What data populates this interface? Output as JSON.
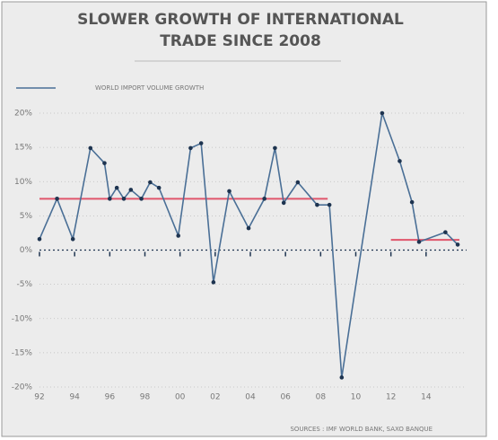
{
  "chart_data": {
    "type": "line",
    "title": [
      "SLOWER GROWTH OF INTERNATIONAL",
      "TRADE SINCE 2008"
    ],
    "source": "SOURCES : IMF WORLD BANK, SAXO BANQUE",
    "x": [
      1992.0,
      1993.0,
      1993.9,
      1994.9,
      1995.7,
      1996.0,
      1996.4,
      1996.8,
      1997.2,
      1997.8,
      1998.3,
      1998.8,
      1999.9,
      2000.6,
      2001.2,
      2001.9,
      2002.8,
      2003.9,
      2004.8,
      2005.4,
      2005.9,
      2006.7,
      2007.8,
      2008.5,
      2009.2,
      2011.5,
      2012.5,
      2013.2,
      2013.6,
      2015.1,
      2015.8
    ],
    "series": [
      {
        "name": "WORLD IMPORT VOLUME GROWTH",
        "color": "#4a6f96",
        "marker_color": "#1e3450",
        "values": [
          1.6,
          7.5,
          1.6,
          14.9,
          12.7,
          7.5,
          9.1,
          7.5,
          8.8,
          7.5,
          9.9,
          9.1,
          2.1,
          14.9,
          15.6,
          -4.7,
          8.6,
          3.2,
          7.5,
          14.9,
          6.9,
          9.9,
          6.6,
          6.6,
          -18.6,
          20,
          13,
          7,
          1.2,
          2.6,
          0.8
        ]
      }
    ],
    "reference_lines": [
      {
        "x": [
          1992,
          2008.4
        ],
        "y": 7.5,
        "color": "#e0566b"
      },
      {
        "x": [
          2012,
          2015.9
        ],
        "y": 1.5,
        "color": "#e0566b"
      }
    ],
    "xlim": [
      1992,
      2016
    ],
    "ylim": [
      -20,
      20
    ],
    "xticks": [
      {
        "value": 1992,
        "label": "92"
      },
      {
        "value": 1994,
        "label": "94"
      },
      {
        "value": 1996,
        "label": "96"
      },
      {
        "value": 1998,
        "label": "98"
      },
      {
        "value": 2000,
        "label": "00"
      },
      {
        "value": 2002,
        "label": "02"
      },
      {
        "value": 2004,
        "label": "04"
      },
      {
        "value": 2006,
        "label": "06"
      },
      {
        "value": 2008,
        "label": "08"
      },
      {
        "value": 2010,
        "label": "10"
      },
      {
        "value": 2012,
        "label": "12"
      },
      {
        "value": 2014,
        "label": "14"
      }
    ],
    "yticks": [
      {
        "value": 20,
        "label": "20%"
      },
      {
        "value": 15,
        "label": "15%"
      },
      {
        "value": 10,
        "label": "10%"
      },
      {
        "value": 5,
        "label": "5%"
      },
      {
        "value": 0,
        "label": "0%"
      },
      {
        "value": -5,
        "label": "-5%"
      },
      {
        "value": -10,
        "label": "-10%"
      },
      {
        "value": -15,
        "label": "-15%"
      },
      {
        "value": -20,
        "label": "-20%"
      }
    ],
    "grid": true
  }
}
